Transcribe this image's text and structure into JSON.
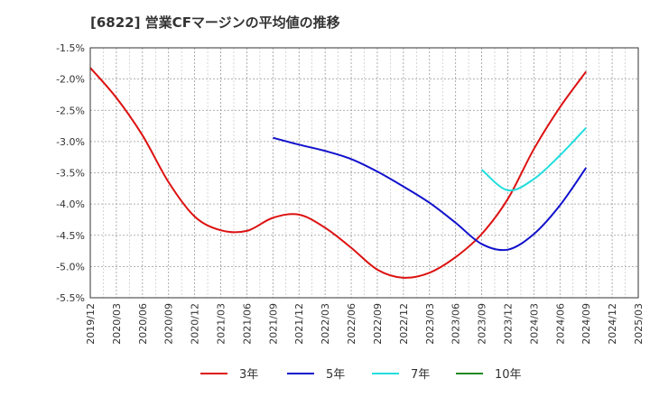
{
  "chart_data": {
    "type": "line",
    "title": "[6822]  営業CFマージンの平均値の推移",
    "xlabel": "",
    "ylabel": "",
    "ylim": [
      -5.5,
      -1.5
    ],
    "y_ticks": [
      "-1.5%",
      "-2.0%",
      "-2.5%",
      "-3.0%",
      "-3.5%",
      "-4.0%",
      "-4.5%",
      "-5.0%",
      "-5.5%"
    ],
    "x_ticks": [
      "2019/12",
      "2020/03",
      "2020/06",
      "2020/09",
      "2020/12",
      "2021/03",
      "2021/06",
      "2021/09",
      "2021/12",
      "2022/03",
      "2022/06",
      "2022/09",
      "2022/12",
      "2023/03",
      "2023/06",
      "2023/09",
      "2023/12",
      "2024/03",
      "2024/06",
      "2024/09",
      "2024/12",
      "2025/03"
    ],
    "grid": true,
    "legend_position": "bottom",
    "series": [
      {
        "name": "3年",
        "color": "#dd1111",
        "x": [
          "2019/12",
          "2020/03",
          "2020/06",
          "2020/09",
          "2020/12",
          "2021/03",
          "2021/06",
          "2021/09",
          "2021/12",
          "2022/03",
          "2022/06",
          "2022/09",
          "2022/12",
          "2023/03",
          "2023/06",
          "2023/09",
          "2023/12",
          "2024/03",
          "2024/06",
          "2024/09"
        ],
        "values": [
          -1.82,
          -2.3,
          -2.9,
          -3.65,
          -4.2,
          -4.42,
          -4.43,
          -4.22,
          -4.17,
          -4.38,
          -4.7,
          -5.05,
          -5.18,
          -5.1,
          -4.85,
          -4.48,
          -3.92,
          -3.12,
          -2.45,
          -1.88
        ]
      },
      {
        "name": "5年",
        "color": "#1111cc",
        "x": [
          "2021/09",
          "2021/12",
          "2022/03",
          "2022/06",
          "2022/09",
          "2022/12",
          "2023/03",
          "2023/06",
          "2023/09",
          "2023/12",
          "2024/03",
          "2024/06",
          "2024/09"
        ],
        "values": [
          -2.94,
          -3.05,
          -3.15,
          -3.28,
          -3.48,
          -3.72,
          -3.98,
          -4.3,
          -4.64,
          -4.73,
          -4.48,
          -4.02,
          -3.42
        ]
      },
      {
        "name": "7年",
        "color": "#22dddd",
        "x": [
          "2023/09",
          "2023/12",
          "2024/03",
          "2024/06",
          "2024/09"
        ],
        "values": [
          -3.45,
          -3.78,
          -3.6,
          -3.22,
          -2.78
        ]
      },
      {
        "name": "10年",
        "color": "#228822",
        "x": [],
        "values": []
      }
    ]
  }
}
